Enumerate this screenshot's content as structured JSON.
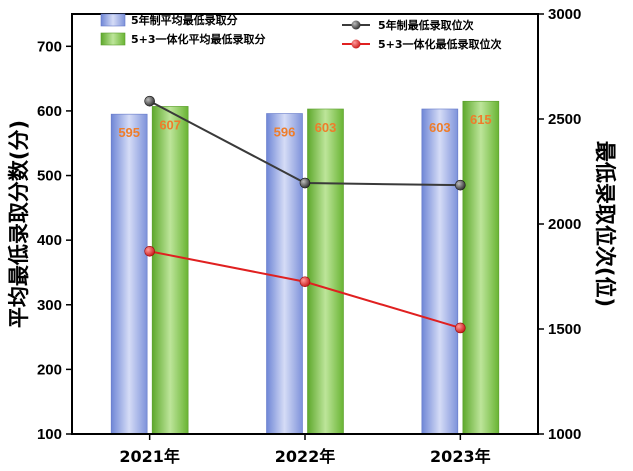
{
  "chart_data": {
    "type": "bar+line",
    "categories": [
      "2021年",
      "2022年",
      "2023年"
    ],
    "bar_series": [
      {
        "name": "5年制平均最低录取分",
        "values": [
          595,
          596,
          603
        ],
        "labels": [
          "595",
          "596",
          "603"
        ],
        "color": "#8f9fe0"
      },
      {
        "name": "5+3一体化平均最低录取分",
        "values": [
          607,
          603,
          615
        ],
        "labels": [
          "607",
          "603",
          "615"
        ],
        "color": "#7fc440"
      }
    ],
    "line_series": [
      {
        "name": "5年制最低录取位次",
        "values": [
          2585,
          2195,
          2185
        ],
        "color": "#3a3a3a"
      },
      {
        "name": "5+3一体化最低录取位次",
        "values": [
          1870,
          1725,
          1505
        ],
        "color": "#e02020"
      }
    ],
    "ylabel_left": "平均最低录取分数(分)",
    "ylabel_right": "最低录取位次(位)",
    "ylim_left": [
      100,
      750
    ],
    "yticks_left": [
      "100",
      "200",
      "300",
      "400",
      "500",
      "600",
      "700"
    ],
    "ylim_right": [
      1000,
      3000
    ],
    "yticks_right": [
      "1000",
      "1500",
      "2000",
      "2500",
      "3000"
    ],
    "grid": false,
    "legend": "top"
  }
}
